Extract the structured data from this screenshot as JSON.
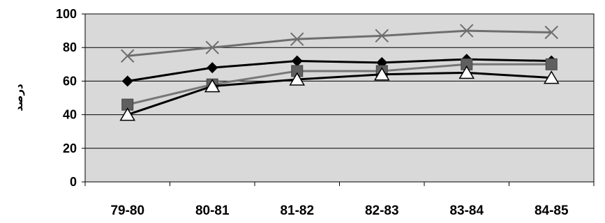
{
  "chart_data": {
    "type": "line",
    "title": "",
    "xlabel": "",
    "ylabel": "درصد",
    "categories": [
      "79-80",
      "80-81",
      "81-82",
      "82-83",
      "83-84",
      "84-85"
    ],
    "ylim": [
      0,
      100
    ],
    "yticks": [
      0,
      20,
      40,
      60,
      80,
      100
    ],
    "grid": "horizontal",
    "legend": "none",
    "series": [
      {
        "values": [
          75,
          80,
          85,
          87,
          90,
          89
        ],
        "color": "#6e6e6e",
        "marker": "x"
      },
      {
        "values": [
          60,
          68,
          72,
          71,
          73,
          72
        ],
        "color": "#000000",
        "marker": "diamond"
      },
      {
        "values": [
          46,
          58,
          66,
          66,
          70,
          70
        ],
        "color": "#777777",
        "marker": "square"
      },
      {
        "values": [
          40,
          57,
          61,
          64,
          65,
          62
        ],
        "color": "#000000",
        "marker": "triangle"
      }
    ]
  }
}
